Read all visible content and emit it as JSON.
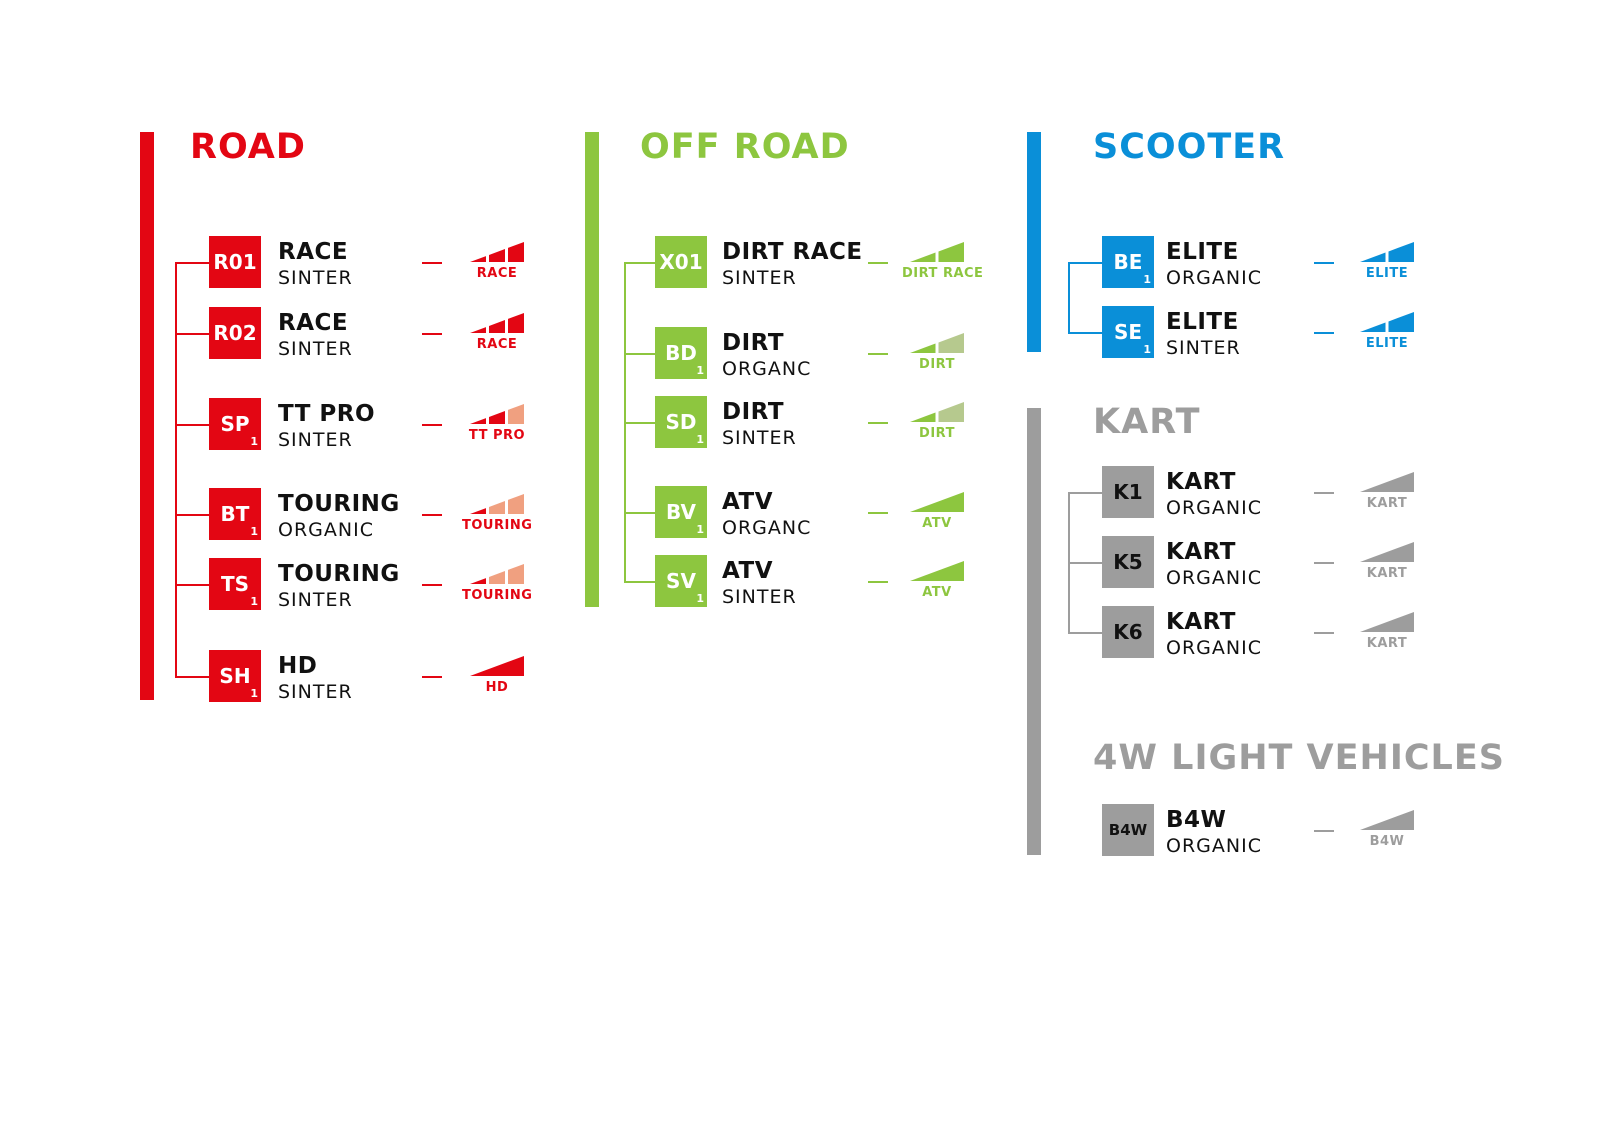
{
  "colors": {
    "road": "#e30613",
    "road_light": "#f0a080",
    "offroad": "#8dc63f",
    "offroad_light": "#b6c98e",
    "scooter": "#0a8fd8",
    "kart": "#9d9d9d",
    "kart_light": "#d0d0d0",
    "text": "#111111"
  },
  "sections": [
    {
      "key": "road",
      "title": "ROAD",
      "color": "road",
      "light": "road_light",
      "badge_text": "#ffffff",
      "tree": true,
      "items": [
        {
          "code": "R01",
          "sub": "",
          "name": "RACE",
          "type": "SINTER",
          "rating": {
            "label": "RACE",
            "segments": 3,
            "filled": 3
          }
        },
        {
          "code": "R02",
          "sub": "",
          "name": "RACE",
          "type": "SINTER",
          "rating": {
            "label": "RACE",
            "segments": 3,
            "filled": 3
          }
        },
        {
          "code": "SP",
          "sub": "1",
          "name": "TT PRO",
          "type": "SINTER",
          "rating": {
            "label": "TT PRO",
            "segments": 3,
            "filled": 2
          }
        },
        {
          "code": "BT",
          "sub": "1",
          "name": "TOURING",
          "type": "ORGANIC",
          "rating": {
            "label": "TOURING",
            "segments": 3,
            "filled": 1
          }
        },
        {
          "code": "TS",
          "sub": "1",
          "name": "TOURING",
          "type": "SINTER",
          "rating": {
            "label": "TOURING",
            "segments": 3,
            "filled": 1
          }
        },
        {
          "code": "SH",
          "sub": "1",
          "name": "HD",
          "type": "SINTER",
          "rating": {
            "label": "HD",
            "segments": 1,
            "filled": 1
          }
        }
      ]
    },
    {
      "key": "offroad",
      "title": "OFF ROAD",
      "color": "offroad",
      "light": "offroad_light",
      "badge_text": "#ffffff",
      "tree": true,
      "items": [
        {
          "code": "X01",
          "sub": "",
          "name": "DIRT RACE",
          "type": "SINTER",
          "rating": {
            "label": "DIRT RACE",
            "segments": 2,
            "filled": 2
          }
        },
        {
          "code": "BD",
          "sub": "1",
          "name": "DIRT",
          "type": "ORGANC",
          "rating": {
            "label": "DIRT",
            "segments": 2,
            "filled": 1
          }
        },
        {
          "code": "SD",
          "sub": "1",
          "name": "DIRT",
          "type": "SINTER",
          "rating": {
            "label": "DIRT",
            "segments": 2,
            "filled": 1
          }
        },
        {
          "code": "BV",
          "sub": "1",
          "name": "ATV",
          "type": "ORGANC",
          "rating": {
            "label": "ATV",
            "segments": 1,
            "filled": 1
          }
        },
        {
          "code": "SV",
          "sub": "1",
          "name": "ATV",
          "type": "SINTER",
          "rating": {
            "label": "ATV",
            "segments": 1,
            "filled": 1
          }
        }
      ]
    },
    {
      "key": "scooter",
      "title": "SCOOTER",
      "color": "scooter",
      "light": "scooter",
      "badge_text": "#ffffff",
      "tree": true,
      "items": [
        {
          "code": "BE",
          "sub": "1",
          "name": "ELITE",
          "type": "ORGANIC",
          "rating": {
            "label": "ELITE",
            "segments": 2,
            "filled": 2
          }
        },
        {
          "code": "SE",
          "sub": "1",
          "name": "ELITE",
          "type": "SINTER",
          "rating": {
            "label": "ELITE",
            "segments": 2,
            "filled": 2
          }
        }
      ]
    },
    {
      "key": "kart",
      "title": "KART",
      "color": "kart",
      "light": "kart_light",
      "badge_text": "#111111",
      "tree": true,
      "items": [
        {
          "code": "K1",
          "sub": "",
          "name": "KART",
          "type": "ORGANIC",
          "rating": {
            "label": "KART",
            "segments": 1,
            "filled": 1
          }
        },
        {
          "code": "K5",
          "sub": "",
          "name": "KART",
          "type": "ORGANIC",
          "rating": {
            "label": "KART",
            "segments": 1,
            "filled": 1
          }
        },
        {
          "code": "K6",
          "sub": "",
          "name": "KART",
          "type": "ORGANIC",
          "rating": {
            "label": "KART",
            "segments": 1,
            "filled": 1
          }
        }
      ]
    },
    {
      "key": "4w",
      "title": "4W LIGHT VEHICLES",
      "color": "kart",
      "light": "kart_light",
      "badge_text": "#111111",
      "tree": false,
      "items": [
        {
          "code": "B4W",
          "sub": "",
          "name": "B4W",
          "type": "ORGANIC",
          "rating": {
            "label": "B4W",
            "segments": 1,
            "filled": 1
          }
        }
      ]
    }
  ]
}
